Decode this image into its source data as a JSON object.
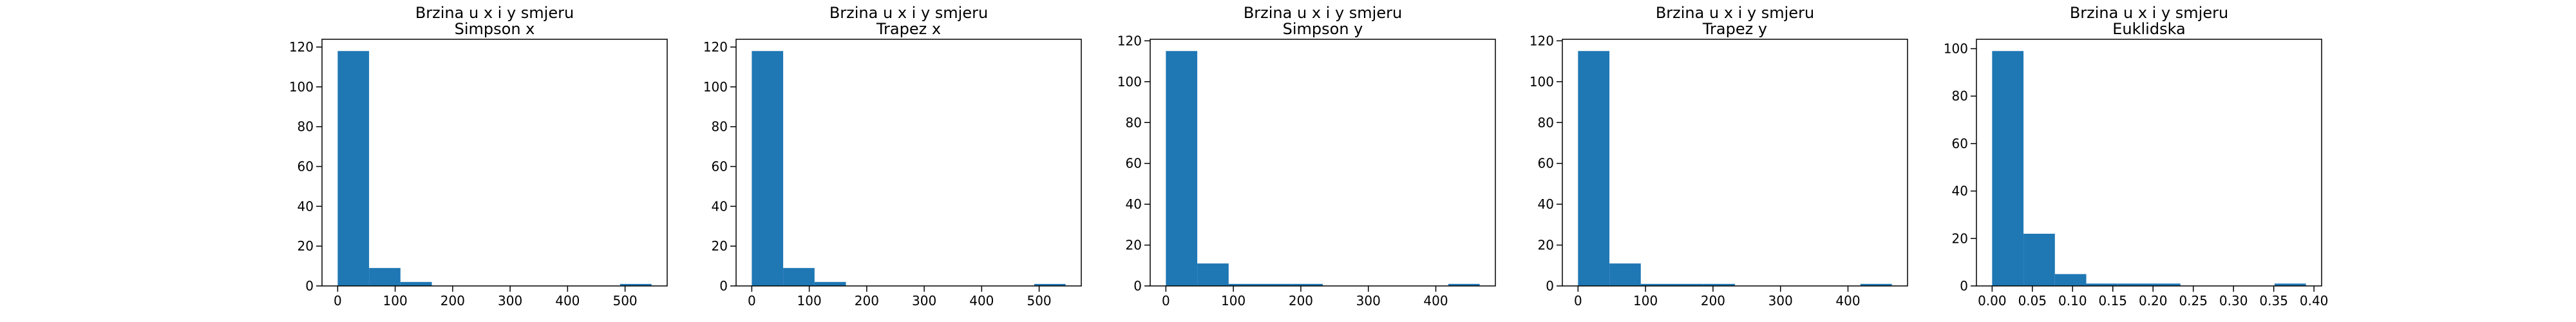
{
  "chart_data": [
    {
      "type": "histogram",
      "title": "Brzina u x i y smjeru",
      "subtitle": "Simpson x",
      "bins": [
        0,
        54.6,
        109.2,
        163.8,
        218.4,
        273,
        327.6,
        382.2,
        436.8,
        491.4,
        546
      ],
      "values": [
        118,
        9,
        2,
        0,
        0,
        0,
        0,
        0,
        0,
        1
      ],
      "color": "#1f77b4",
      "xlim": [
        -27.3,
        573.3
      ],
      "xticks": [
        0,
        100,
        200,
        300,
        400,
        500
      ],
      "ylim": [
        0,
        123.9
      ],
      "yticks": [
        0,
        20,
        40,
        60,
        80,
        100,
        120
      ]
    },
    {
      "type": "histogram",
      "title": "Brzina u x i y smjeru",
      "subtitle": "Trapez x",
      "bins": [
        0,
        54.6,
        109.2,
        163.8,
        218.4,
        273,
        327.6,
        382.2,
        436.8,
        491.4,
        546
      ],
      "values": [
        118,
        9,
        2,
        0,
        0,
        0,
        0,
        0,
        0,
        1
      ],
      "color": "#1f77b4",
      "xlim": [
        -27.3,
        573.3
      ],
      "xticks": [
        0,
        100,
        200,
        300,
        400,
        500
      ],
      "ylim": [
        0,
        123.9
      ],
      "yticks": [
        0,
        20,
        40,
        60,
        80,
        100,
        120
      ]
    },
    {
      "type": "histogram",
      "title": "Brzina u x i y smjeru",
      "subtitle": "Simpson y",
      "bins": [
        0,
        46.5,
        93,
        139.5,
        186,
        232.5,
        279,
        325.5,
        372,
        418.5,
        465
      ],
      "values": [
        115,
        11,
        1,
        1,
        1,
        0,
        0,
        0,
        0,
        1
      ],
      "color": "#1f77b4",
      "xlim": [
        -23.25,
        488.25
      ],
      "xticks": [
        0,
        100,
        200,
        300,
        400
      ],
      "ylim": [
        0,
        120.75
      ],
      "yticks": [
        0,
        20,
        40,
        60,
        80,
        100,
        120
      ]
    },
    {
      "type": "histogram",
      "title": "Brzina u x i y smjeru",
      "subtitle": "Trapez y",
      "bins": [
        0,
        46.5,
        93,
        139.5,
        186,
        232.5,
        279,
        325.5,
        372,
        418.5,
        465
      ],
      "values": [
        115,
        11,
        1,
        1,
        1,
        0,
        0,
        0,
        0,
        1
      ],
      "color": "#1f77b4",
      "xlim": [
        -23.25,
        488.25
      ],
      "xticks": [
        0,
        100,
        200,
        300,
        400
      ],
      "ylim": [
        0,
        120.75
      ],
      "yticks": [
        0,
        20,
        40,
        60,
        80,
        100,
        120
      ]
    },
    {
      "type": "histogram",
      "title": "Brzina u x i y smjeru",
      "subtitle": "Euklidska",
      "bins": [
        0,
        0.039,
        0.078,
        0.117,
        0.156,
        0.195,
        0.234,
        0.273,
        0.312,
        0.351,
        0.39
      ],
      "values": [
        99,
        22,
        5,
        1,
        1,
        1,
        0,
        0,
        0,
        1
      ],
      "color": "#1f77b4",
      "xlim": [
        -0.0195,
        0.4095
      ],
      "xticks": [
        {
          "value": 0,
          "label": "0.00"
        },
        0.05,
        {
          "value": 0.1,
          "label": "0.10"
        },
        0.15,
        {
          "value": 0.2,
          "label": "0.20"
        },
        0.25,
        {
          "value": 0.3,
          "label": "0.30"
        },
        0.35,
        {
          "value": 0.4,
          "label": "0.40"
        }
      ],
      "ylim": [
        0,
        103.95
      ],
      "yticks": [
        0,
        20,
        40,
        60,
        80,
        100
      ]
    }
  ]
}
